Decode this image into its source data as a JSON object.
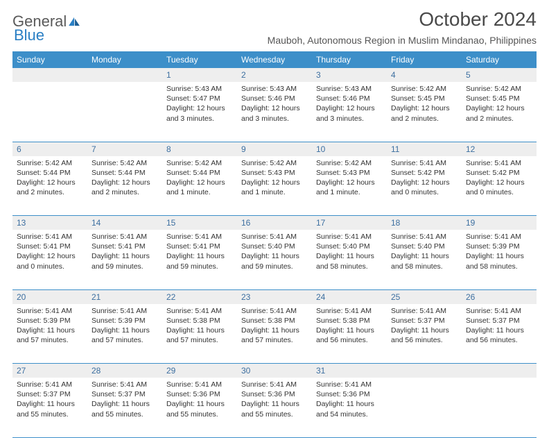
{
  "logo": {
    "text1": "General",
    "text2": "Blue"
  },
  "title": "October 2024",
  "location": "Mauboh, Autonomous Region in Muslim Mindanao, Philippines",
  "colors": {
    "header_bg": "#3d8fc9",
    "header_text": "#ffffff",
    "daynum_bg": "#eeeeee",
    "daynum_text": "#3d6fa0",
    "body_text": "#333333",
    "rule": "#3d8fc9",
    "logo_gray": "#5a5a5a",
    "logo_blue": "#2a7fc4"
  },
  "days_of_week": [
    "Sunday",
    "Monday",
    "Tuesday",
    "Wednesday",
    "Thursday",
    "Friday",
    "Saturday"
  ],
  "weeks": [
    [
      null,
      null,
      {
        "n": "1",
        "sr": "5:43 AM",
        "ss": "5:47 PM",
        "dl": "12 hours and 3 minutes."
      },
      {
        "n": "2",
        "sr": "5:43 AM",
        "ss": "5:46 PM",
        "dl": "12 hours and 3 minutes."
      },
      {
        "n": "3",
        "sr": "5:43 AM",
        "ss": "5:46 PM",
        "dl": "12 hours and 3 minutes."
      },
      {
        "n": "4",
        "sr": "5:42 AM",
        "ss": "5:45 PM",
        "dl": "12 hours and 2 minutes."
      },
      {
        "n": "5",
        "sr": "5:42 AM",
        "ss": "5:45 PM",
        "dl": "12 hours and 2 minutes."
      }
    ],
    [
      {
        "n": "6",
        "sr": "5:42 AM",
        "ss": "5:44 PM",
        "dl": "12 hours and 2 minutes."
      },
      {
        "n": "7",
        "sr": "5:42 AM",
        "ss": "5:44 PM",
        "dl": "12 hours and 2 minutes."
      },
      {
        "n": "8",
        "sr": "5:42 AM",
        "ss": "5:44 PM",
        "dl": "12 hours and 1 minute."
      },
      {
        "n": "9",
        "sr": "5:42 AM",
        "ss": "5:43 PM",
        "dl": "12 hours and 1 minute."
      },
      {
        "n": "10",
        "sr": "5:42 AM",
        "ss": "5:43 PM",
        "dl": "12 hours and 1 minute."
      },
      {
        "n": "11",
        "sr": "5:41 AM",
        "ss": "5:42 PM",
        "dl": "12 hours and 0 minutes."
      },
      {
        "n": "12",
        "sr": "5:41 AM",
        "ss": "5:42 PM",
        "dl": "12 hours and 0 minutes."
      }
    ],
    [
      {
        "n": "13",
        "sr": "5:41 AM",
        "ss": "5:41 PM",
        "dl": "12 hours and 0 minutes."
      },
      {
        "n": "14",
        "sr": "5:41 AM",
        "ss": "5:41 PM",
        "dl": "11 hours and 59 minutes."
      },
      {
        "n": "15",
        "sr": "5:41 AM",
        "ss": "5:41 PM",
        "dl": "11 hours and 59 minutes."
      },
      {
        "n": "16",
        "sr": "5:41 AM",
        "ss": "5:40 PM",
        "dl": "11 hours and 59 minutes."
      },
      {
        "n": "17",
        "sr": "5:41 AM",
        "ss": "5:40 PM",
        "dl": "11 hours and 58 minutes."
      },
      {
        "n": "18",
        "sr": "5:41 AM",
        "ss": "5:40 PM",
        "dl": "11 hours and 58 minutes."
      },
      {
        "n": "19",
        "sr": "5:41 AM",
        "ss": "5:39 PM",
        "dl": "11 hours and 58 minutes."
      }
    ],
    [
      {
        "n": "20",
        "sr": "5:41 AM",
        "ss": "5:39 PM",
        "dl": "11 hours and 57 minutes."
      },
      {
        "n": "21",
        "sr": "5:41 AM",
        "ss": "5:39 PM",
        "dl": "11 hours and 57 minutes."
      },
      {
        "n": "22",
        "sr": "5:41 AM",
        "ss": "5:38 PM",
        "dl": "11 hours and 57 minutes."
      },
      {
        "n": "23",
        "sr": "5:41 AM",
        "ss": "5:38 PM",
        "dl": "11 hours and 57 minutes."
      },
      {
        "n": "24",
        "sr": "5:41 AM",
        "ss": "5:38 PM",
        "dl": "11 hours and 56 minutes."
      },
      {
        "n": "25",
        "sr": "5:41 AM",
        "ss": "5:37 PM",
        "dl": "11 hours and 56 minutes."
      },
      {
        "n": "26",
        "sr": "5:41 AM",
        "ss": "5:37 PM",
        "dl": "11 hours and 56 minutes."
      }
    ],
    [
      {
        "n": "27",
        "sr": "5:41 AM",
        "ss": "5:37 PM",
        "dl": "11 hours and 55 minutes."
      },
      {
        "n": "28",
        "sr": "5:41 AM",
        "ss": "5:37 PM",
        "dl": "11 hours and 55 minutes."
      },
      {
        "n": "29",
        "sr": "5:41 AM",
        "ss": "5:36 PM",
        "dl": "11 hours and 55 minutes."
      },
      {
        "n": "30",
        "sr": "5:41 AM",
        "ss": "5:36 PM",
        "dl": "11 hours and 55 minutes."
      },
      {
        "n": "31",
        "sr": "5:41 AM",
        "ss": "5:36 PM",
        "dl": "11 hours and 54 minutes."
      },
      null,
      null
    ]
  ],
  "labels": {
    "sunrise": "Sunrise:",
    "sunset": "Sunset:",
    "daylight": "Daylight:"
  }
}
